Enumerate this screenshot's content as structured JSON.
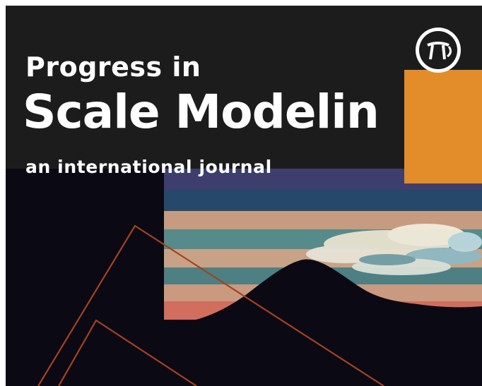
{
  "cover": {
    "series_label": "Progress in",
    "title": "Scale Modelin",
    "subtitle": "an international journal",
    "logo_name": "journal-emblem-icon",
    "colors": {
      "header_background": "#1d1c1c",
      "lower_background": "#0b0914",
      "accent_block": "#e28c2a",
      "line_art": "#a5421f",
      "text": "#ffffff"
    }
  }
}
